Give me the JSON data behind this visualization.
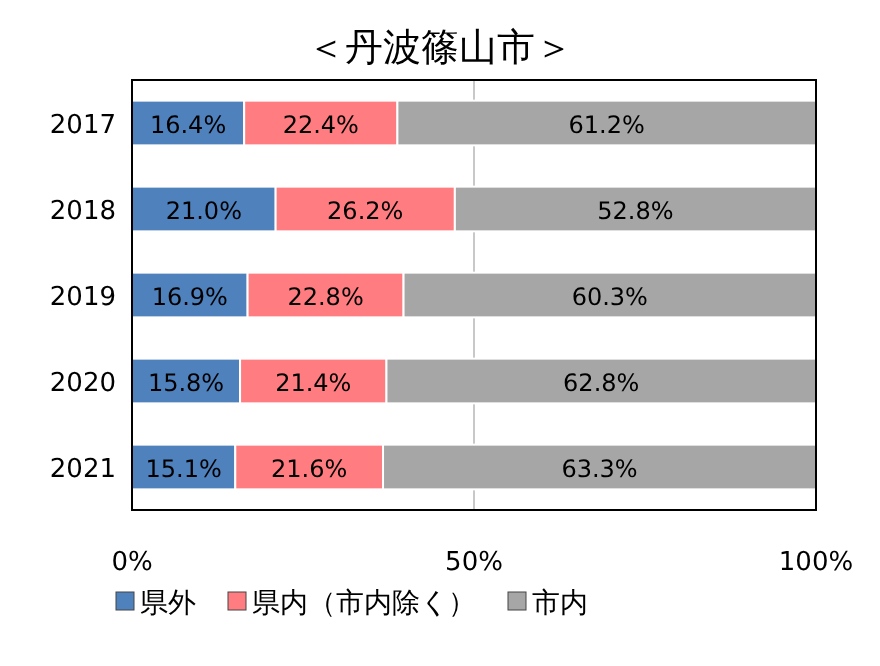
{
  "chart_data": {
    "type": "bar",
    "orientation": "horizontal",
    "stacked": true,
    "title": "＜丹波篠山市＞",
    "categories": [
      "2017",
      "2018",
      "2019",
      "2020",
      "2021"
    ],
    "series": [
      {
        "name": "県外",
        "color": "#4f81bd",
        "values": [
          16.4,
          21.0,
          16.9,
          15.8,
          15.1
        ],
        "value_labels": [
          "16.4%",
          "21.0%",
          "16.9%",
          "15.8%",
          "15.1%"
        ]
      },
      {
        "name": "県内（市内除く）",
        "color": "#ff7c80",
        "values": [
          22.4,
          26.2,
          22.8,
          21.4,
          21.6
        ],
        "value_labels": [
          "22.4%",
          "26.2%",
          "22.8%",
          "21.4%",
          "21.6%"
        ]
      },
      {
        "name": "市内",
        "color": "#a6a6a6",
        "values": [
          61.2,
          52.8,
          60.3,
          62.8,
          63.3
        ],
        "value_labels": [
          "61.2%",
          "52.8%",
          "60.3%",
          "62.8%",
          "63.3%"
        ]
      }
    ],
    "xlim": [
      0,
      100
    ],
    "xticks": [
      {
        "value": 0,
        "label": "0%"
      },
      {
        "value": 50,
        "label": "50%"
      },
      {
        "value": 100,
        "label": "100%"
      }
    ],
    "grid": "x",
    "legend": "bottom"
  }
}
